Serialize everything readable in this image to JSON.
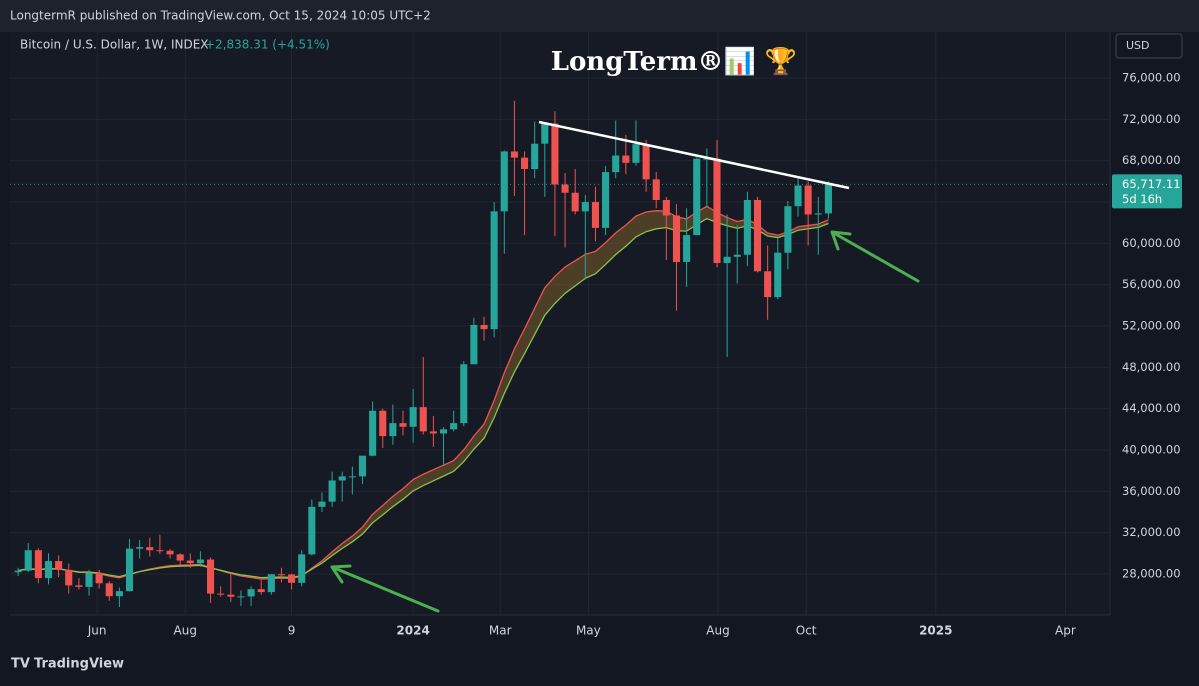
{
  "header": "LongtermR published on TradingView.com, Oct 15, 2024 10:05 UTC+2",
  "footer": "TradingView",
  "chart_data": {
    "type": "candlestick",
    "title": "LongTerm®📊 🏆",
    "symbol": "Bitcoin / U.S. Dollar, 1W, INDEX",
    "change": "+2,838.31 (+4.51%)",
    "currency": "USD",
    "last_label": "65,717.11",
    "countdown": "5d 16h",
    "up_color": "#26a69a",
    "down_color": "#ef5350",
    "open": [
      28170,
      28320,
      30300,
      27600,
      29250,
      28400,
      26900,
      26750,
      28100,
      27100,
      25850,
      26340,
      30450,
      30600,
      30300,
      30250,
      29900,
      29300,
      29050,
      29400,
      26100,
      26000,
      25800,
      25830,
      26530,
      26250,
      27970,
      27950,
      27150,
      29900,
      34500,
      35000,
      37050,
      37450,
      37450,
      39450,
      43800,
      41350,
      42600,
      42250,
      44150,
      41800,
      41600,
      42000,
      42600,
      48300,
      52100,
      51700,
      63100,
      68900,
      68300,
      67200,
      69650,
      71600,
      65700,
      64900,
      63100,
      64000,
      61500,
      66900,
      68500,
      67800,
      69600,
      66200,
      64200,
      62700,
      58200,
      60800,
      68200,
      68200,
      58100,
      58700,
      58900,
      64200,
      57300,
      54800,
      59100,
      63600,
      65600,
      62800,
      62900
    ],
    "high": [
      28600,
      31000,
      30500,
      30000,
      29800,
      29000,
      27600,
      28400,
      28400,
      27300,
      26700,
      31400,
      31300,
      31500,
      31800,
      30400,
      30000,
      30000,
      30200,
      29600,
      26800,
      28100,
      26400,
      26800,
      27400,
      28000,
      28600,
      28000,
      30300,
      35200,
      35900,
      37900,
      37900,
      38400,
      39000,
      44700,
      44000,
      44400,
      43800,
      45900,
      49000,
      43300,
      42200,
      43800,
      48600,
      52800,
      52900,
      64000,
      69000,
      73800,
      68900,
      71800,
      71300,
      72800,
      66800,
      67200,
      64700,
      65500,
      67500,
      71900,
      70500,
      71900,
      70000,
      66900,
      64500,
      63800,
      63400,
      68300,
      69200,
      70000,
      62800,
      61800,
      65000,
      64500,
      59800,
      60500,
      64100,
      66500,
      66000,
      64500,
      66000
    ],
    "low": [
      27800,
      28200,
      27100,
      27000,
      27700,
      26100,
      26500,
      25900,
      26600,
      25400,
      24800,
      26300,
      29500,
      29700,
      29950,
      29500,
      28900,
      28600,
      28700,
      25200,
      25800,
      25300,
      24900,
      24900,
      26000,
      26000,
      27200,
      26500,
      26800,
      29800,
      34000,
      34500,
      35000,
      35700,
      36700,
      39400,
      40200,
      40500,
      41400,
      40700,
      41500,
      40300,
      38500,
      41800,
      42300,
      48300,
      50600,
      50900,
      59000,
      64600,
      60800,
      66300,
      64500,
      60700,
      59600,
      62800,
      56500,
      60200,
      60800,
      66300,
      66700,
      67500,
      65000,
      63400,
      58400,
      53500,
      55800,
      60800,
      63500,
      57700,
      49000,
      56100,
      57800,
      57200,
      52600,
      54600,
      57500,
      62600,
      59800,
      58900,
      62400
    ],
    "close": [
      28320,
      30300,
      27600,
      29250,
      28400,
      26900,
      26750,
      28100,
      27100,
      25850,
      26340,
      30450,
      30600,
      30300,
      30250,
      29900,
      29300,
      29050,
      29400,
      26100,
      26000,
      25800,
      25830,
      26530,
      26250,
      27970,
      27950,
      27150,
      29900,
      34500,
      35000,
      37050,
      37450,
      37450,
      39450,
      43800,
      41350,
      42600,
      42250,
      44150,
      41800,
      41600,
      42000,
      42600,
      48300,
      52100,
      51700,
      63100,
      68900,
      68300,
      67200,
      69650,
      71600,
      65700,
      64900,
      63100,
      64000,
      61500,
      66900,
      68500,
      67800,
      69600,
      66200,
      64200,
      62700,
      58200,
      60800,
      68200,
      68200,
      58100,
      58700,
      58900,
      64200,
      57300,
      54800,
      59100,
      63600,
      65600,
      62800,
      62900,
      65717.11
    ],
    "xlim": [
      -0.8,
      107.8
    ],
    "xticks": [
      {
        "value": 7.8,
        "label": "Jun"
      },
      {
        "value": 16.5,
        "label": "Aug"
      },
      {
        "value": 27,
        "label": "9"
      },
      {
        "value": 39,
        "label": "2024"
      },
      {
        "value": 47.6,
        "label": "Mar"
      },
      {
        "value": 56.3,
        "label": "May"
      },
      {
        "value": 69.1,
        "label": "Aug"
      },
      {
        "value": 77.8,
        "label": "Oct"
      },
      {
        "value": 90.6,
        "label": "2025"
      },
      {
        "value": 103.4,
        "label": "Apr"
      }
    ],
    "ylim": [
      24030,
      80170
    ],
    "yticks": [
      {
        "value": 28000,
        "label": "28,000.00"
      },
      {
        "value": 32000,
        "label": "32,000.00"
      },
      {
        "value": 36000,
        "label": "36,000.00"
      },
      {
        "value": 40000,
        "label": "40,000.00"
      },
      {
        "value": 44000,
        "label": "44,000.00"
      },
      {
        "value": 48000,
        "label": "48,000.00"
      },
      {
        "value": 52000,
        "label": "52,000.00"
      },
      {
        "value": 56000,
        "label": "56,000.00"
      },
      {
        "value": 60000,
        "label": "60,000.00"
      },
      {
        "value": 64000,
        "label": "64,000.00"
      },
      {
        "value": 68000,
        "label": "68,000.00"
      },
      {
        "value": 72000,
        "label": "72,000.00"
      },
      {
        "value": 76000,
        "label": "76,000.00"
      }
    ],
    "grid": true
  }
}
